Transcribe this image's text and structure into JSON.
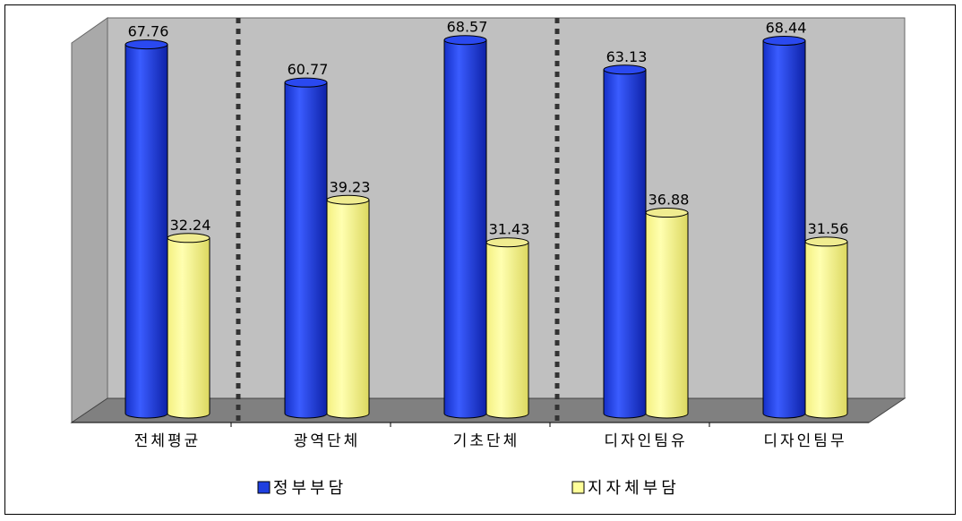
{
  "chart_data": {
    "type": "bar",
    "categories": [
      "전체평균",
      "광역단체",
      "기초단체",
      "디자인팀유",
      "디자인팀무"
    ],
    "series": [
      {
        "name": "정부부담",
        "values": [
          67.76,
          60.77,
          68.57,
          63.13,
          68.44
        ],
        "color": "#1f3fe0"
      },
      {
        "name": "지자체부담",
        "values": [
          32.24,
          39.23,
          31.43,
          36.88,
          31.56
        ],
        "color": "#ffff99"
      }
    ],
    "ylim": [
      0,
      70
    ],
    "legend_position": "bottom",
    "separators_after": [
      0,
      2
    ],
    "style": "3d-cylinder"
  }
}
